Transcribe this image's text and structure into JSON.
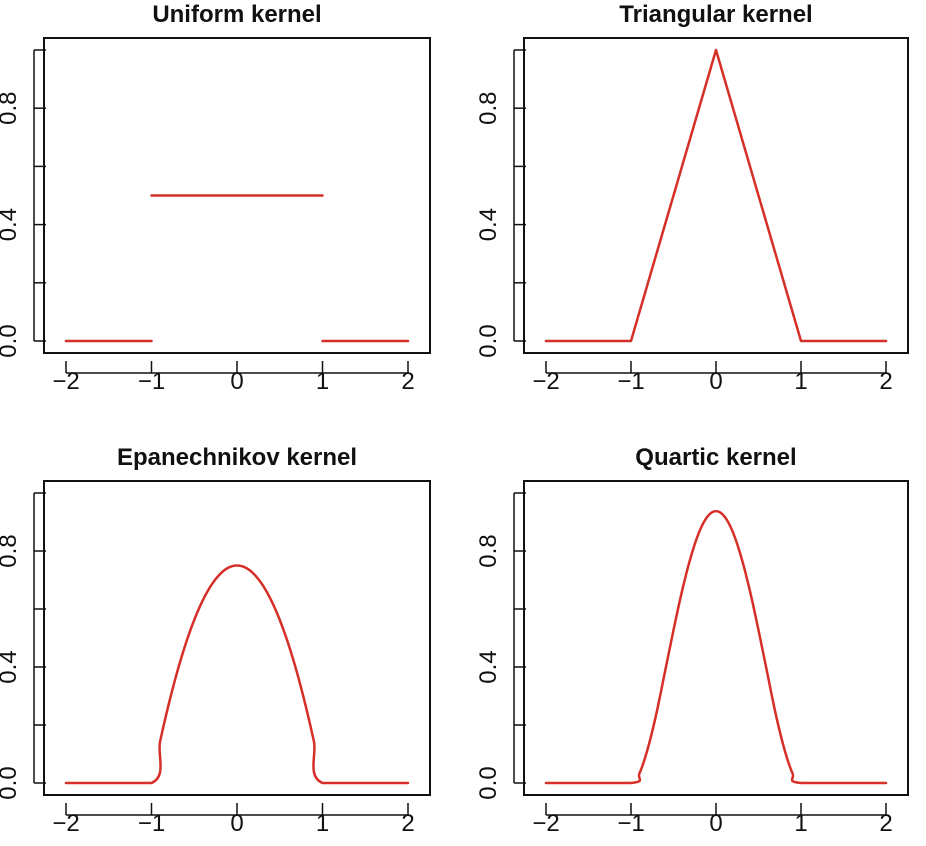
{
  "chart_data": [
    {
      "type": "line",
      "title": "Uniform kernel",
      "xlabel": "",
      "ylabel": "",
      "xlim": [
        -2,
        2
      ],
      "ylim": [
        0,
        1
      ],
      "x_ticks": [
        -2,
        -1,
        0,
        1,
        2
      ],
      "x_tick_labels": [
        "−2",
        "−1",
        "0",
        "1",
        "2"
      ],
      "y_ticks": [
        0,
        0.2,
        0.4,
        0.6,
        0.8,
        1.0
      ],
      "y_tick_labels": [
        "0.0",
        "",
        "0.4",
        "",
        "0.8",
        ""
      ],
      "grid": false,
      "series": [
        {
          "color": "#d62f27",
          "segments": [
            [
              [
                -2,
                0
              ],
              [
                -1,
                0
              ]
            ],
            [
              [
                -1,
                0.5
              ],
              [
                1,
                0.5
              ]
            ],
            [
              [
                1,
                0
              ],
              [
                2,
                0
              ]
            ]
          ]
        }
      ]
    },
    {
      "type": "line",
      "title": "Triangular kernel",
      "xlabel": "",
      "ylabel": "",
      "xlim": [
        -2,
        2
      ],
      "ylim": [
        0,
        1
      ],
      "x_ticks": [
        -2,
        -1,
        0,
        1,
        2
      ],
      "x_tick_labels": [
        "−2",
        "−1",
        "0",
        "1",
        "2"
      ],
      "y_ticks": [
        0,
        0.2,
        0.4,
        0.6,
        0.8,
        1.0
      ],
      "y_tick_labels": [
        "0.0",
        "",
        "0.4",
        "",
        "0.8",
        ""
      ],
      "grid": false,
      "series": [
        {
          "color": "#d62f27",
          "x": [
            -2,
            -1,
            0,
            1,
            2
          ],
          "y": [
            0,
            0,
            1,
            0,
            0
          ]
        }
      ]
    },
    {
      "type": "line",
      "title": "Epanechnikov kernel",
      "xlabel": "",
      "ylabel": "",
      "xlim": [
        -2,
        2
      ],
      "ylim": [
        0,
        1
      ],
      "x_ticks": [
        -2,
        -1,
        0,
        1,
        2
      ],
      "x_tick_labels": [
        "−2",
        "−1",
        "0",
        "1",
        "2"
      ],
      "y_ticks": [
        0,
        0.2,
        0.4,
        0.6,
        0.8,
        1.0
      ],
      "y_tick_labels": [
        "0.0",
        "",
        "0.4",
        "",
        "0.8",
        ""
      ],
      "grid": false,
      "series": [
        {
          "color": "#d62f27",
          "x": [
            -2,
            -1,
            -0.9,
            -0.8,
            -0.7,
            -0.6,
            -0.5,
            -0.4,
            -0.3,
            -0.2,
            -0.1,
            0,
            0.1,
            0.2,
            0.3,
            0.4,
            0.5,
            0.6,
            0.7,
            0.8,
            0.9,
            1,
            2
          ],
          "y": [
            0,
            0,
            0.1425,
            0.27,
            0.3825,
            0.48,
            0.5625,
            0.63,
            0.6825,
            0.72,
            0.7425,
            0.75,
            0.7425,
            0.72,
            0.6825,
            0.63,
            0.5625,
            0.48,
            0.3825,
            0.27,
            0.1425,
            0,
            0
          ]
        }
      ]
    },
    {
      "type": "line",
      "title": "Quartic kernel",
      "xlabel": "",
      "ylabel": "",
      "xlim": [
        -2,
        2
      ],
      "ylim": [
        0,
        1
      ],
      "x_ticks": [
        -2,
        -1,
        0,
        1,
        2
      ],
      "x_tick_labels": [
        "−2",
        "−1",
        "0",
        "1",
        "2"
      ],
      "y_ticks": [
        0,
        0.2,
        0.4,
        0.6,
        0.8,
        1.0
      ],
      "y_tick_labels": [
        "0.0",
        "",
        "0.4",
        "",
        "0.8",
        ""
      ],
      "grid": false,
      "series": [
        {
          "color": "#d62f27",
          "x": [
            -2,
            -1,
            -0.9,
            -0.8,
            -0.7,
            -0.6,
            -0.5,
            -0.4,
            -0.3,
            -0.2,
            -0.1,
            0,
            0.1,
            0.2,
            0.3,
            0.4,
            0.5,
            0.6,
            0.7,
            0.8,
            0.9,
            1,
            2
          ],
          "y": [
            0,
            0,
            0.0338,
            0.1215,
            0.2412,
            0.384,
            0.5273,
            0.6615,
            0.7757,
            0.864,
            0.9189,
            0.9375,
            0.9189,
            0.864,
            0.7757,
            0.6615,
            0.5273,
            0.384,
            0.2412,
            0.1215,
            0.0338,
            0,
            0
          ]
        }
      ]
    }
  ]
}
